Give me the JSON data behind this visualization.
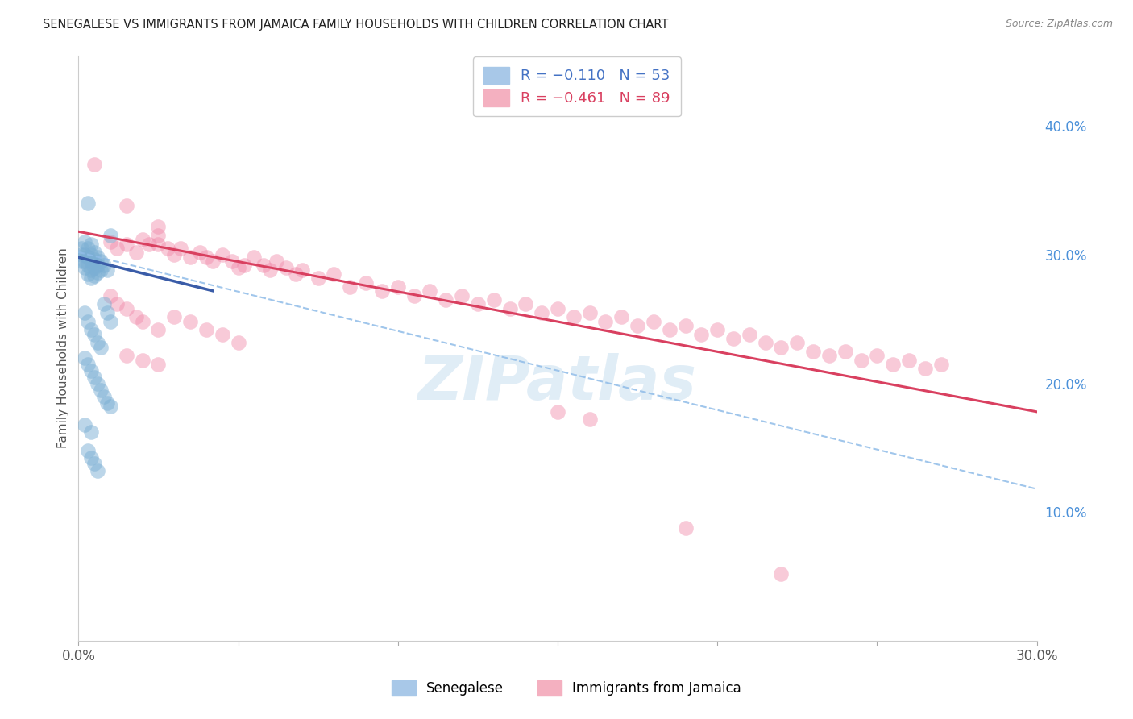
{
  "title": "SENEGALESE VS IMMIGRANTS FROM JAMAICA FAMILY HOUSEHOLDS WITH CHILDREN CORRELATION CHART",
  "source": "Source: ZipAtlas.com",
  "ylabel": "Family Households with Children",
  "senegalese_label": "Senegalese",
  "jamaica_label": "Immigrants from Jamaica",
  "scatter_blue_color": "#7bafd4",
  "scatter_pink_color": "#f08aaa",
  "trendline_blue_color": "#3a5ca8",
  "trendline_pink_color": "#d94060",
  "trendline_dashed_color": "#90bce8",
  "background_color": "#ffffff",
  "grid_color": "#d0d8e0",
  "title_color": "#222222",
  "right_axis_color": "#4a90d9",
  "xlim": [
    0.0,
    0.3
  ],
  "ylim": [
    0.0,
    0.455
  ],
  "right_ytick_values": [
    0.1,
    0.2,
    0.3,
    0.4
  ],
  "right_ytick_labels": [
    "10.0%",
    "20.0%",
    "30.0%",
    "40.0%"
  ],
  "xtick_values": [
    0.0,
    0.05,
    0.1,
    0.15,
    0.2,
    0.25,
    0.3
  ],
  "xtick_labels": [
    "0.0%",
    "",
    "",
    "",
    "",
    "",
    "30.0%"
  ],
  "blue_points": [
    [
      0.001,
      0.305
    ],
    [
      0.001,
      0.3
    ],
    [
      0.001,
      0.295
    ],
    [
      0.002,
      0.31
    ],
    [
      0.002,
      0.3
    ],
    [
      0.002,
      0.295
    ],
    [
      0.002,
      0.29
    ],
    [
      0.003,
      0.305
    ],
    [
      0.003,
      0.298
    ],
    [
      0.003,
      0.292
    ],
    [
      0.003,
      0.285
    ],
    [
      0.004,
      0.308
    ],
    [
      0.004,
      0.3
    ],
    [
      0.004,
      0.295
    ],
    [
      0.004,
      0.288
    ],
    [
      0.004,
      0.282
    ],
    [
      0.005,
      0.302
    ],
    [
      0.005,
      0.296
    ],
    [
      0.005,
      0.29
    ],
    [
      0.005,
      0.284
    ],
    [
      0.006,
      0.298
    ],
    [
      0.006,
      0.292
    ],
    [
      0.006,
      0.286
    ],
    [
      0.007,
      0.295
    ],
    [
      0.007,
      0.288
    ],
    [
      0.008,
      0.292
    ],
    [
      0.009,
      0.288
    ],
    [
      0.002,
      0.255
    ],
    [
      0.003,
      0.248
    ],
    [
      0.004,
      0.242
    ],
    [
      0.005,
      0.238
    ],
    [
      0.006,
      0.232
    ],
    [
      0.007,
      0.228
    ],
    [
      0.008,
      0.262
    ],
    [
      0.009,
      0.255
    ],
    [
      0.01,
      0.248
    ],
    [
      0.003,
      0.34
    ],
    [
      0.01,
      0.315
    ],
    [
      0.002,
      0.22
    ],
    [
      0.003,
      0.215
    ],
    [
      0.004,
      0.21
    ],
    [
      0.005,
      0.205
    ],
    [
      0.006,
      0.2
    ],
    [
      0.007,
      0.195
    ],
    [
      0.008,
      0.19
    ],
    [
      0.009,
      0.185
    ],
    [
      0.01,
      0.182
    ],
    [
      0.002,
      0.168
    ],
    [
      0.004,
      0.162
    ],
    [
      0.003,
      0.148
    ],
    [
      0.004,
      0.142
    ],
    [
      0.005,
      0.138
    ],
    [
      0.006,
      0.132
    ]
  ],
  "pink_points": [
    [
      0.005,
      0.37
    ],
    [
      0.015,
      0.338
    ],
    [
      0.025,
      0.322
    ],
    [
      0.01,
      0.31
    ],
    [
      0.012,
      0.305
    ],
    [
      0.015,
      0.308
    ],
    [
      0.018,
      0.302
    ],
    [
      0.02,
      0.312
    ],
    [
      0.022,
      0.308
    ],
    [
      0.025,
      0.315
    ],
    [
      0.025,
      0.308
    ],
    [
      0.028,
      0.305
    ],
    [
      0.03,
      0.3
    ],
    [
      0.032,
      0.305
    ],
    [
      0.035,
      0.298
    ],
    [
      0.038,
      0.302
    ],
    [
      0.04,
      0.298
    ],
    [
      0.042,
      0.295
    ],
    [
      0.045,
      0.3
    ],
    [
      0.048,
      0.295
    ],
    [
      0.05,
      0.29
    ],
    [
      0.052,
      0.292
    ],
    [
      0.055,
      0.298
    ],
    [
      0.058,
      0.292
    ],
    [
      0.06,
      0.288
    ],
    [
      0.062,
      0.295
    ],
    [
      0.065,
      0.29
    ],
    [
      0.068,
      0.285
    ],
    [
      0.07,
      0.288
    ],
    [
      0.075,
      0.282
    ],
    [
      0.08,
      0.285
    ],
    [
      0.085,
      0.275
    ],
    [
      0.09,
      0.278
    ],
    [
      0.095,
      0.272
    ],
    [
      0.1,
      0.275
    ],
    [
      0.105,
      0.268
    ],
    [
      0.11,
      0.272
    ],
    [
      0.115,
      0.265
    ],
    [
      0.12,
      0.268
    ],
    [
      0.125,
      0.262
    ],
    [
      0.13,
      0.265
    ],
    [
      0.135,
      0.258
    ],
    [
      0.14,
      0.262
    ],
    [
      0.145,
      0.255
    ],
    [
      0.15,
      0.258
    ],
    [
      0.155,
      0.252
    ],
    [
      0.16,
      0.255
    ],
    [
      0.165,
      0.248
    ],
    [
      0.17,
      0.252
    ],
    [
      0.175,
      0.245
    ],
    [
      0.18,
      0.248
    ],
    [
      0.185,
      0.242
    ],
    [
      0.19,
      0.245
    ],
    [
      0.195,
      0.238
    ],
    [
      0.2,
      0.242
    ],
    [
      0.205,
      0.235
    ],
    [
      0.21,
      0.238
    ],
    [
      0.215,
      0.232
    ],
    [
      0.22,
      0.228
    ],
    [
      0.225,
      0.232
    ],
    [
      0.23,
      0.225
    ],
    [
      0.235,
      0.222
    ],
    [
      0.24,
      0.225
    ],
    [
      0.245,
      0.218
    ],
    [
      0.25,
      0.222
    ],
    [
      0.255,
      0.215
    ],
    [
      0.26,
      0.218
    ],
    [
      0.265,
      0.212
    ],
    [
      0.27,
      0.215
    ],
    [
      0.01,
      0.268
    ],
    [
      0.012,
      0.262
    ],
    [
      0.015,
      0.258
    ],
    [
      0.018,
      0.252
    ],
    [
      0.02,
      0.248
    ],
    [
      0.025,
      0.242
    ],
    [
      0.03,
      0.252
    ],
    [
      0.035,
      0.248
    ],
    [
      0.04,
      0.242
    ],
    [
      0.045,
      0.238
    ],
    [
      0.05,
      0.232
    ],
    [
      0.015,
      0.222
    ],
    [
      0.02,
      0.218
    ],
    [
      0.025,
      0.215
    ],
    [
      0.15,
      0.178
    ],
    [
      0.16,
      0.172
    ],
    [
      0.19,
      0.088
    ],
    [
      0.22,
      0.052
    ]
  ],
  "blue_solid_trend_x": [
    0.0,
    0.042
  ],
  "blue_solid_trend_y": [
    0.298,
    0.272
  ],
  "blue_dashed_trend_x": [
    0.0,
    0.3
  ],
  "blue_dashed_trend_y": [
    0.302,
    0.118
  ],
  "pink_solid_trend_x": [
    0.0,
    0.3
  ],
  "pink_solid_trend_y": [
    0.318,
    0.178
  ]
}
